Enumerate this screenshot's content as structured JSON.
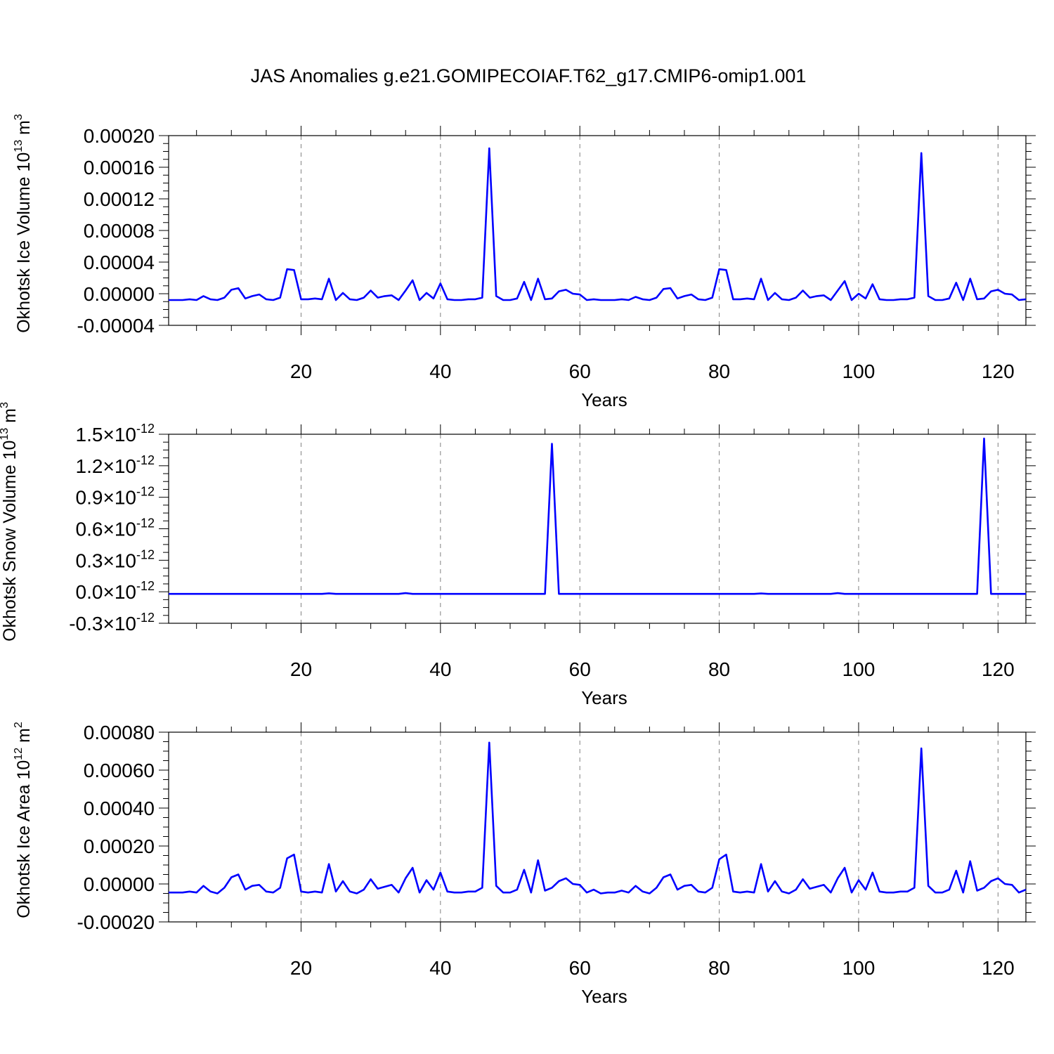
{
  "figure": {
    "title": "JAS Anomalies g.e21.GOMIPECOIAF.T62_g17.CMIP6-omip1.001"
  },
  "chart_data": [
    {
      "type": "line",
      "ylabel": "Okhotsk Ice Volume 10",
      "ylabel_exp": "13",
      "ylabel_unit": " m",
      "ylabel_unit_exp": "3",
      "xlabel": "Years",
      "xlim": [
        1,
        124
      ],
      "ylim": [
        -4e-05,
        0.0002
      ],
      "xticks": [
        20,
        40,
        60,
        80,
        100,
        120
      ],
      "xtick_labels": [
        "20",
        "40",
        "60",
        "80",
        "100",
        "120"
      ],
      "yticks": [
        -4e-05,
        0.0,
        4e-05,
        8e-05,
        0.00012,
        0.00016,
        0.0002
      ],
      "ytick_labels": [
        "-0.00004",
        "0.00000",
        "0.00004",
        "0.00008",
        "0.00012",
        "0.00016",
        "0.00020"
      ],
      "grid_x": true,
      "color": "#0000ff",
      "series": [
        {
          "values": [
            -8e-06,
            -8e-06,
            -8e-06,
            -7e-06,
            -8e-06,
            -3e-06,
            -7e-06,
            -8e-06,
            -5e-06,
            5e-06,
            7e-06,
            -6e-06,
            -3e-06,
            -1e-06,
            -7e-06,
            -8e-06,
            -5e-06,
            3.1e-05,
            3e-05,
            -7e-06,
            -7e-06,
            -6e-06,
            -7e-06,
            1.9e-05,
            -8e-06,
            1e-06,
            -7e-06,
            -8e-06,
            -5e-06,
            4e-06,
            -5e-06,
            -3e-06,
            -2e-06,
            -8e-06,
            4e-06,
            1.7e-05,
            -8e-06,
            1e-06,
            -6e-06,
            1.3e-05,
            -7e-06,
            -8e-06,
            -8e-06,
            -7e-06,
            -7e-06,
            -5e-06,
            0.000184,
            -3e-06,
            -8e-06,
            -8e-06,
            -6e-06,
            1.5e-05,
            -8e-06,
            1.9e-05,
            -7e-06,
            -6e-06,
            3e-06,
            5e-06,
            0.0,
            -1e-06,
            -8e-06,
            -7e-06,
            -8e-06,
            -8e-06,
            -8e-06,
            -7e-06,
            -8e-06,
            -4e-06,
            -7e-06,
            -8e-06,
            -5e-06,
            6e-06,
            7e-06,
            -6e-06,
            -3e-06,
            -1e-06,
            -7e-06,
            -8e-06,
            -5e-06,
            3.1e-05,
            3e-05,
            -7e-06,
            -7e-06,
            -6e-06,
            -7e-06,
            1.9e-05,
            -8e-06,
            1e-06,
            -7e-06,
            -8e-06,
            -5e-06,
            4e-06,
            -5e-06,
            -3e-06,
            -2e-06,
            -8e-06,
            4e-06,
            1.6e-05,
            -8e-06,
            0.0,
            -6e-06,
            1.2e-05,
            -7e-06,
            -8e-06,
            -8e-06,
            -7e-06,
            -7e-06,
            -5e-06,
            0.000178,
            -3e-06,
            -8e-06,
            -8e-06,
            -6e-06,
            1.4e-05,
            -8e-06,
            1.9e-05,
            -7e-06,
            -6e-06,
            3e-06,
            5e-06,
            0.0,
            -1e-06,
            -8e-06,
            -7e-06
          ]
        }
      ]
    },
    {
      "type": "line",
      "ylabel": "Okhotsk Snow Volume 10",
      "ylabel_exp": "13",
      "ylabel_unit": " m",
      "ylabel_unit_exp": "3",
      "xlabel": "Years",
      "xlim": [
        1,
        124
      ],
      "ylim": [
        -3e-13,
        1.5e-12
      ],
      "xticks": [
        20,
        40,
        60,
        80,
        100,
        120
      ],
      "xtick_labels": [
        "20",
        "40",
        "60",
        "80",
        "100",
        "120"
      ],
      "yticks": [
        -3e-13,
        0.0,
        3e-13,
        6e-13,
        9e-13,
        1.2e-12,
        1.5e-12
      ],
      "ytick_mantissa": [
        "-0.3",
        "0.0",
        "0.3",
        "0.6",
        "0.9",
        "1.2",
        "1.5"
      ],
      "ytick_times": "×10",
      "ytick_exp": "-12",
      "grid_x": true,
      "color": "#0000ff",
      "series": [
        {
          "baseline": -2e-14,
          "spikes": [
            {
              "x": 24,
              "y": -1.5e-14
            },
            {
              "x": 35,
              "y": -1.3e-14
            },
            {
              "x": 56,
              "y": 1.41e-12
            },
            {
              "x": 86,
              "y": -1.6e-14
            },
            {
              "x": 97,
              "y": -1.3e-14
            },
            {
              "x": 118,
              "y": 1.46e-12
            }
          ]
        }
      ]
    },
    {
      "type": "line",
      "ylabel": "Okhotsk Ice Area 10",
      "ylabel_exp": "12",
      "ylabel_unit": " m",
      "ylabel_unit_exp": "2",
      "xlabel": "Years",
      "xlim": [
        1,
        124
      ],
      "ylim": [
        -0.0002,
        0.0008
      ],
      "xticks": [
        20,
        40,
        60,
        80,
        100,
        120
      ],
      "xtick_labels": [
        "20",
        "40",
        "60",
        "80",
        "100",
        "120"
      ],
      "yticks": [
        -0.0002,
        0.0,
        0.0002,
        0.0004,
        0.0006,
        0.0008
      ],
      "ytick_labels": [
        "-0.00020",
        "0.00000",
        "0.00020",
        "0.00040",
        "0.00060",
        "0.00080"
      ],
      "grid_x": true,
      "color": "#0000ff",
      "series": [
        {
          "values": [
            -4.5e-05,
            -4.5e-05,
            -4.5e-05,
            -4e-05,
            -4.5e-05,
            -1e-05,
            -4e-05,
            -5e-05,
            -2e-05,
            3.5e-05,
            5e-05,
            -3e-05,
            -1e-05,
            -5e-06,
            -4e-05,
            -4.5e-05,
            -2e-05,
            0.000135,
            0.000155,
            -4e-05,
            -4.5e-05,
            -4e-05,
            -4.5e-05,
            0.000105,
            -4e-05,
            1.5e-05,
            -4e-05,
            -5e-05,
            -3e-05,
            2.5e-05,
            -2.5e-05,
            -1.5e-05,
            -5e-06,
            -4.5e-05,
            3e-05,
            8.5e-05,
            -4.5e-05,
            2e-05,
            -3e-05,
            6e-05,
            -4e-05,
            -4.5e-05,
            -4.5e-05,
            -4e-05,
            -4e-05,
            -2e-05,
            0.000745,
            -1e-05,
            -4.5e-05,
            -4.5e-05,
            -3e-05,
            7.5e-05,
            -4.5e-05,
            0.000125,
            -3.5e-05,
            -2e-05,
            1.5e-05,
            3e-05,
            0.0,
            -5e-06,
            -4.5e-05,
            -3e-05,
            -5e-05,
            -4.5e-05,
            -4.5e-05,
            -3.5e-05,
            -4.5e-05,
            -1e-05,
            -4e-05,
            -5e-05,
            -2e-05,
            3.5e-05,
            5e-05,
            -3e-05,
            -1e-05,
            -5e-06,
            -4e-05,
            -4.5e-05,
            -2e-05,
            0.00013,
            0.000155,
            -4e-05,
            -4.5e-05,
            -4e-05,
            -4.5e-05,
            0.000105,
            -4e-05,
            1.5e-05,
            -4e-05,
            -5e-05,
            -3e-05,
            2.5e-05,
            -2.5e-05,
            -1.5e-05,
            -5e-06,
            -4.5e-05,
            3e-05,
            8.5e-05,
            -4.5e-05,
            2e-05,
            -3e-05,
            6e-05,
            -4e-05,
            -4.5e-05,
            -4.5e-05,
            -4e-05,
            -4e-05,
            -2e-05,
            0.000715,
            -1e-05,
            -4.5e-05,
            -4.5e-05,
            -3e-05,
            7e-05,
            -4.5e-05,
            0.00012,
            -3.5e-05,
            -2e-05,
            1.5e-05,
            3e-05,
            0.0,
            -5e-06,
            -4.5e-05,
            -3e-05
          ]
        }
      ]
    }
  ]
}
